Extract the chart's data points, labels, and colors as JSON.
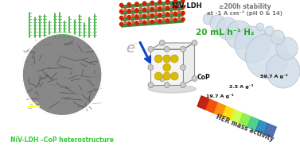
{
  "title": "NiV-LDH –CoP heterostructure",
  "label_niv_ldh": "NiV-LDH",
  "label_cop": "CoP",
  "stability_line1": "≥200h stability",
  "stability_line2": "at -1 A cm⁻² (pH 0 & 14)",
  "h2_text": "20 mL h⁻¹ H₂",
  "her_text": "HER mass activity",
  "val1": "19.7 A g⁻¹",
  "val2": "2.5 A g⁻¹",
  "val3": "59.7 A g⁻¹",
  "bg_color": "#ffffff",
  "title_color": "#33cc33",
  "stability_color": "#777777",
  "h2_color": "#22aa22",
  "bubble_color": "#d0dde8",
  "bubble_edge": "#b0bfcc",
  "bar_colors": [
    "#bb1100",
    "#ee4400",
    "#ff8800",
    "#ffdd00",
    "#ccff44",
    "#88ee44",
    "#44cc88",
    "#2288bb",
    "#4466aa"
  ],
  "electron_color": "#aaaaaa",
  "niv_ldh_color": "#111111",
  "cop_color": "#111111",
  "arrow_color": "#1144cc",
  "sheet_green": "#2d7a2d",
  "sheet_red": "#cc2200",
  "atom_yellow": "#ddbb00",
  "atom_gray": "#cccccc",
  "sem_bg": "#888888",
  "scale_color": "#ffff00",
  "nanowire_color": "#444444",
  "cactus_color": "#33aa33"
}
